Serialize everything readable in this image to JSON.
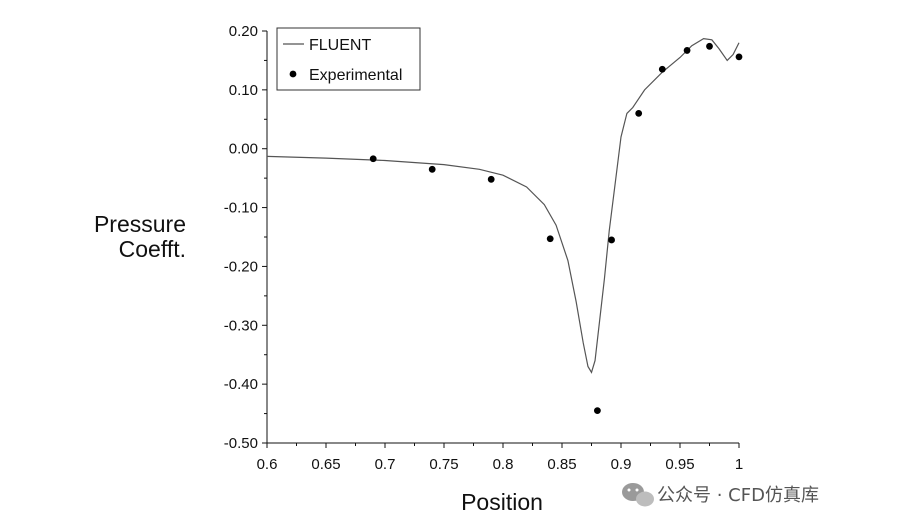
{
  "chart_data": {
    "type": "line",
    "xlabel": "Position",
    "ylabel_lines": [
      "Pressure",
      "Coefft."
    ],
    "xlim": [
      0.6,
      1.0
    ],
    "ylim": [
      -0.5,
      0.2
    ],
    "x_ticks": [
      0.6,
      0.65,
      0.7,
      0.75,
      0.8,
      0.85,
      0.9,
      0.95,
      1.0
    ],
    "x_tick_labels": [
      "0.6",
      "0.65",
      "0.7",
      "0.75",
      "0.8",
      "0.85",
      "0.9",
      "0.95",
      "1"
    ],
    "y_ticks": [
      0.2,
      0.1,
      0.0,
      -0.1,
      -0.2,
      -0.3,
      -0.4,
      -0.5
    ],
    "y_tick_labels": [
      "0.20",
      "0.10",
      "0.00",
      "-0.10",
      "-0.20",
      "-0.30",
      "-0.40",
      "-0.50"
    ],
    "grid": false,
    "legend_position": "top-left",
    "series": [
      {
        "name": "FLUENT",
        "style": "line",
        "color": "#555555",
        "x": [
          0.6,
          0.65,
          0.7,
          0.75,
          0.78,
          0.8,
          0.82,
          0.835,
          0.845,
          0.855,
          0.862,
          0.868,
          0.872,
          0.875,
          0.878,
          0.882,
          0.886,
          0.89,
          0.895,
          0.9,
          0.905,
          0.91,
          0.92,
          0.935,
          0.95,
          0.96,
          0.97,
          0.977,
          0.983,
          0.99,
          0.995,
          1.0
        ],
        "y": [
          -0.013,
          -0.016,
          -0.02,
          -0.027,
          -0.035,
          -0.045,
          -0.065,
          -0.095,
          -0.13,
          -0.19,
          -0.26,
          -0.33,
          -0.37,
          -0.38,
          -0.36,
          -0.29,
          -0.22,
          -0.14,
          -0.06,
          0.02,
          0.06,
          0.07,
          0.1,
          0.13,
          0.155,
          0.175,
          0.187,
          0.185,
          0.17,
          0.15,
          0.16,
          0.18
        ]
      },
      {
        "name": "Experimental",
        "style": "markers",
        "color": "#000000",
        "x": [
          0.69,
          0.74,
          0.79,
          0.84,
          0.88,
          0.892,
          0.915,
          0.935,
          0.956,
          0.975,
          1.0
        ],
        "y": [
          -0.017,
          -0.035,
          -0.052,
          -0.153,
          -0.445,
          -0.155,
          0.06,
          0.135,
          0.167,
          0.174,
          0.156
        ]
      }
    ]
  },
  "watermark": {
    "text": "公众号 · CFD仿真库",
    "icon": "wechat-icon"
  }
}
